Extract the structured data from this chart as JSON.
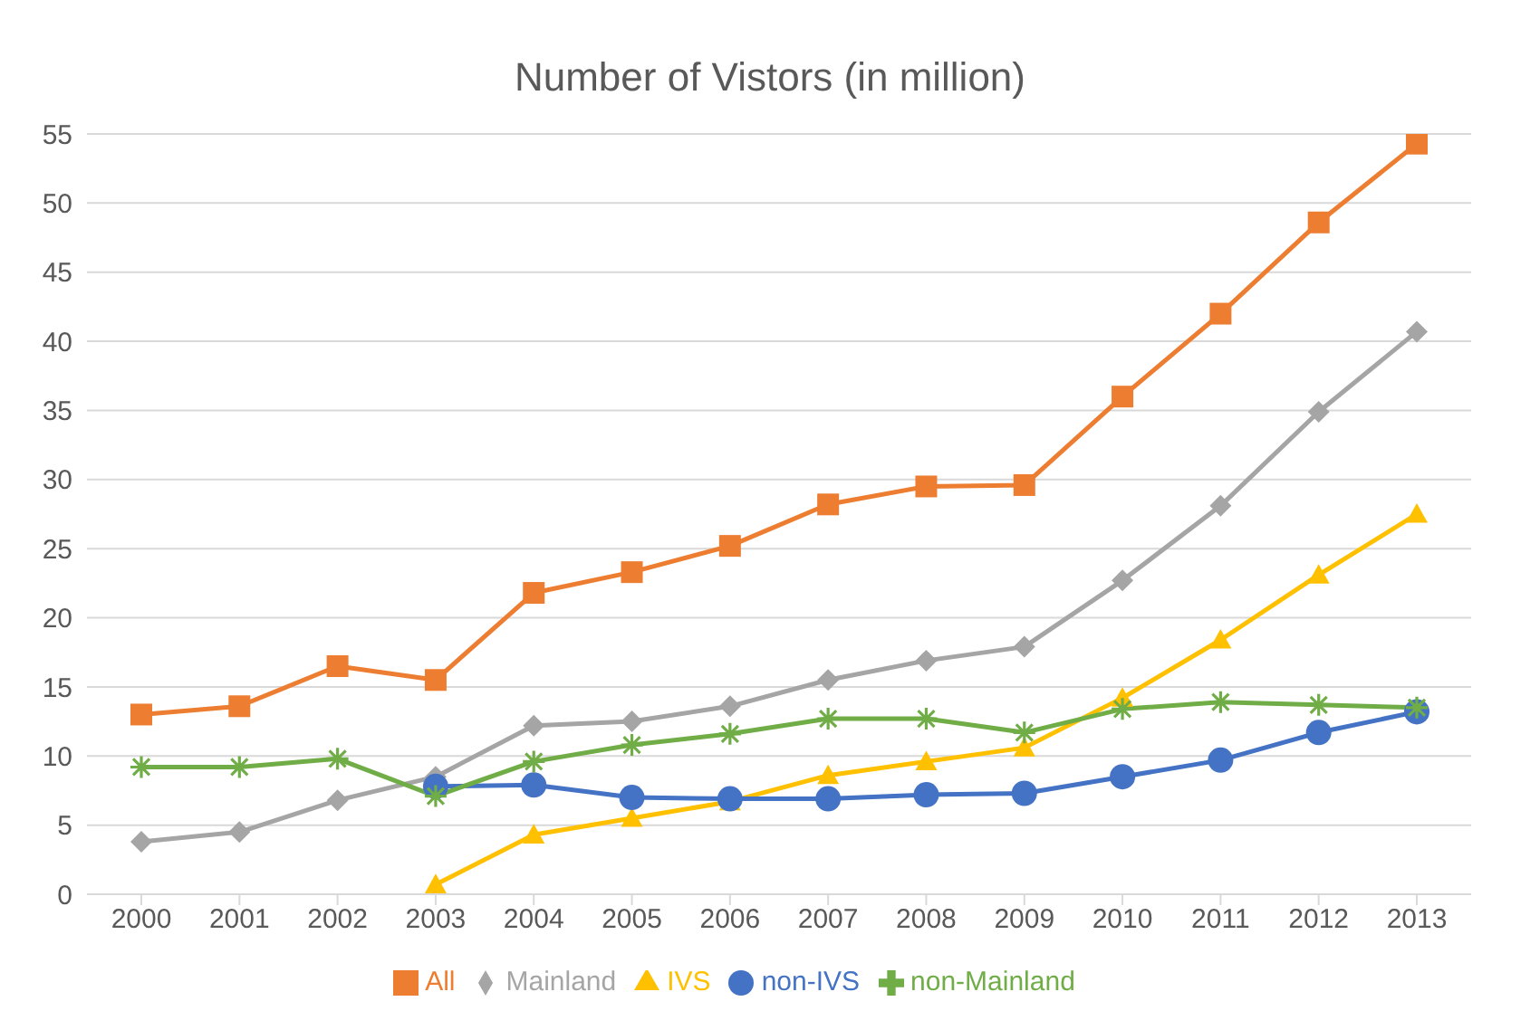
{
  "chart_data": {
    "type": "line",
    "title": "Number of Vistors (in million)",
    "categories": [
      "2000",
      "2001",
      "2002",
      "2003",
      "2004",
      "2005",
      "2006",
      "2007",
      "2008",
      "2009",
      "2010",
      "2011",
      "2012",
      "2013"
    ],
    "series": [
      {
        "name": "All",
        "color": "#ed7d31",
        "marker": "square",
        "values": [
          13.0,
          13.6,
          16.5,
          15.5,
          21.8,
          23.3,
          25.2,
          28.2,
          29.5,
          29.6,
          36.0,
          42.0,
          48.6,
          54.3
        ]
      },
      {
        "name": "Mainland",
        "color": "#a5a5a5",
        "marker": "diamond",
        "values": [
          3.8,
          4.5,
          6.8,
          8.5,
          12.2,
          12.5,
          13.6,
          15.5,
          16.9,
          17.9,
          22.7,
          28.1,
          34.9,
          40.7
        ]
      },
      {
        "name": "IVS",
        "color": "#ffc000",
        "marker": "triangle",
        "values": [
          null,
          null,
          null,
          0.7,
          4.3,
          5.5,
          6.7,
          8.6,
          9.6,
          10.6,
          14.2,
          18.4,
          23.1,
          27.5
        ]
      },
      {
        "name": "non-IVS",
        "color": "#4472c4",
        "marker": "circle",
        "values": [
          null,
          null,
          null,
          7.8,
          7.9,
          7.0,
          6.9,
          6.9,
          7.2,
          7.3,
          8.5,
          9.7,
          11.7,
          13.2
        ]
      },
      {
        "name": "non-Mainland",
        "color": "#70ad47",
        "marker": "cross",
        "values": [
          9.2,
          9.2,
          9.8,
          7.1,
          9.6,
          10.8,
          11.6,
          12.7,
          12.7,
          11.7,
          13.4,
          13.9,
          13.7,
          13.5
        ]
      }
    ],
    "ylim": [
      0,
      55
    ],
    "yticks": [
      0,
      5,
      10,
      15,
      20,
      25,
      30,
      35,
      40,
      45,
      50,
      55
    ],
    "grid": "y",
    "legend": "bottom"
  }
}
